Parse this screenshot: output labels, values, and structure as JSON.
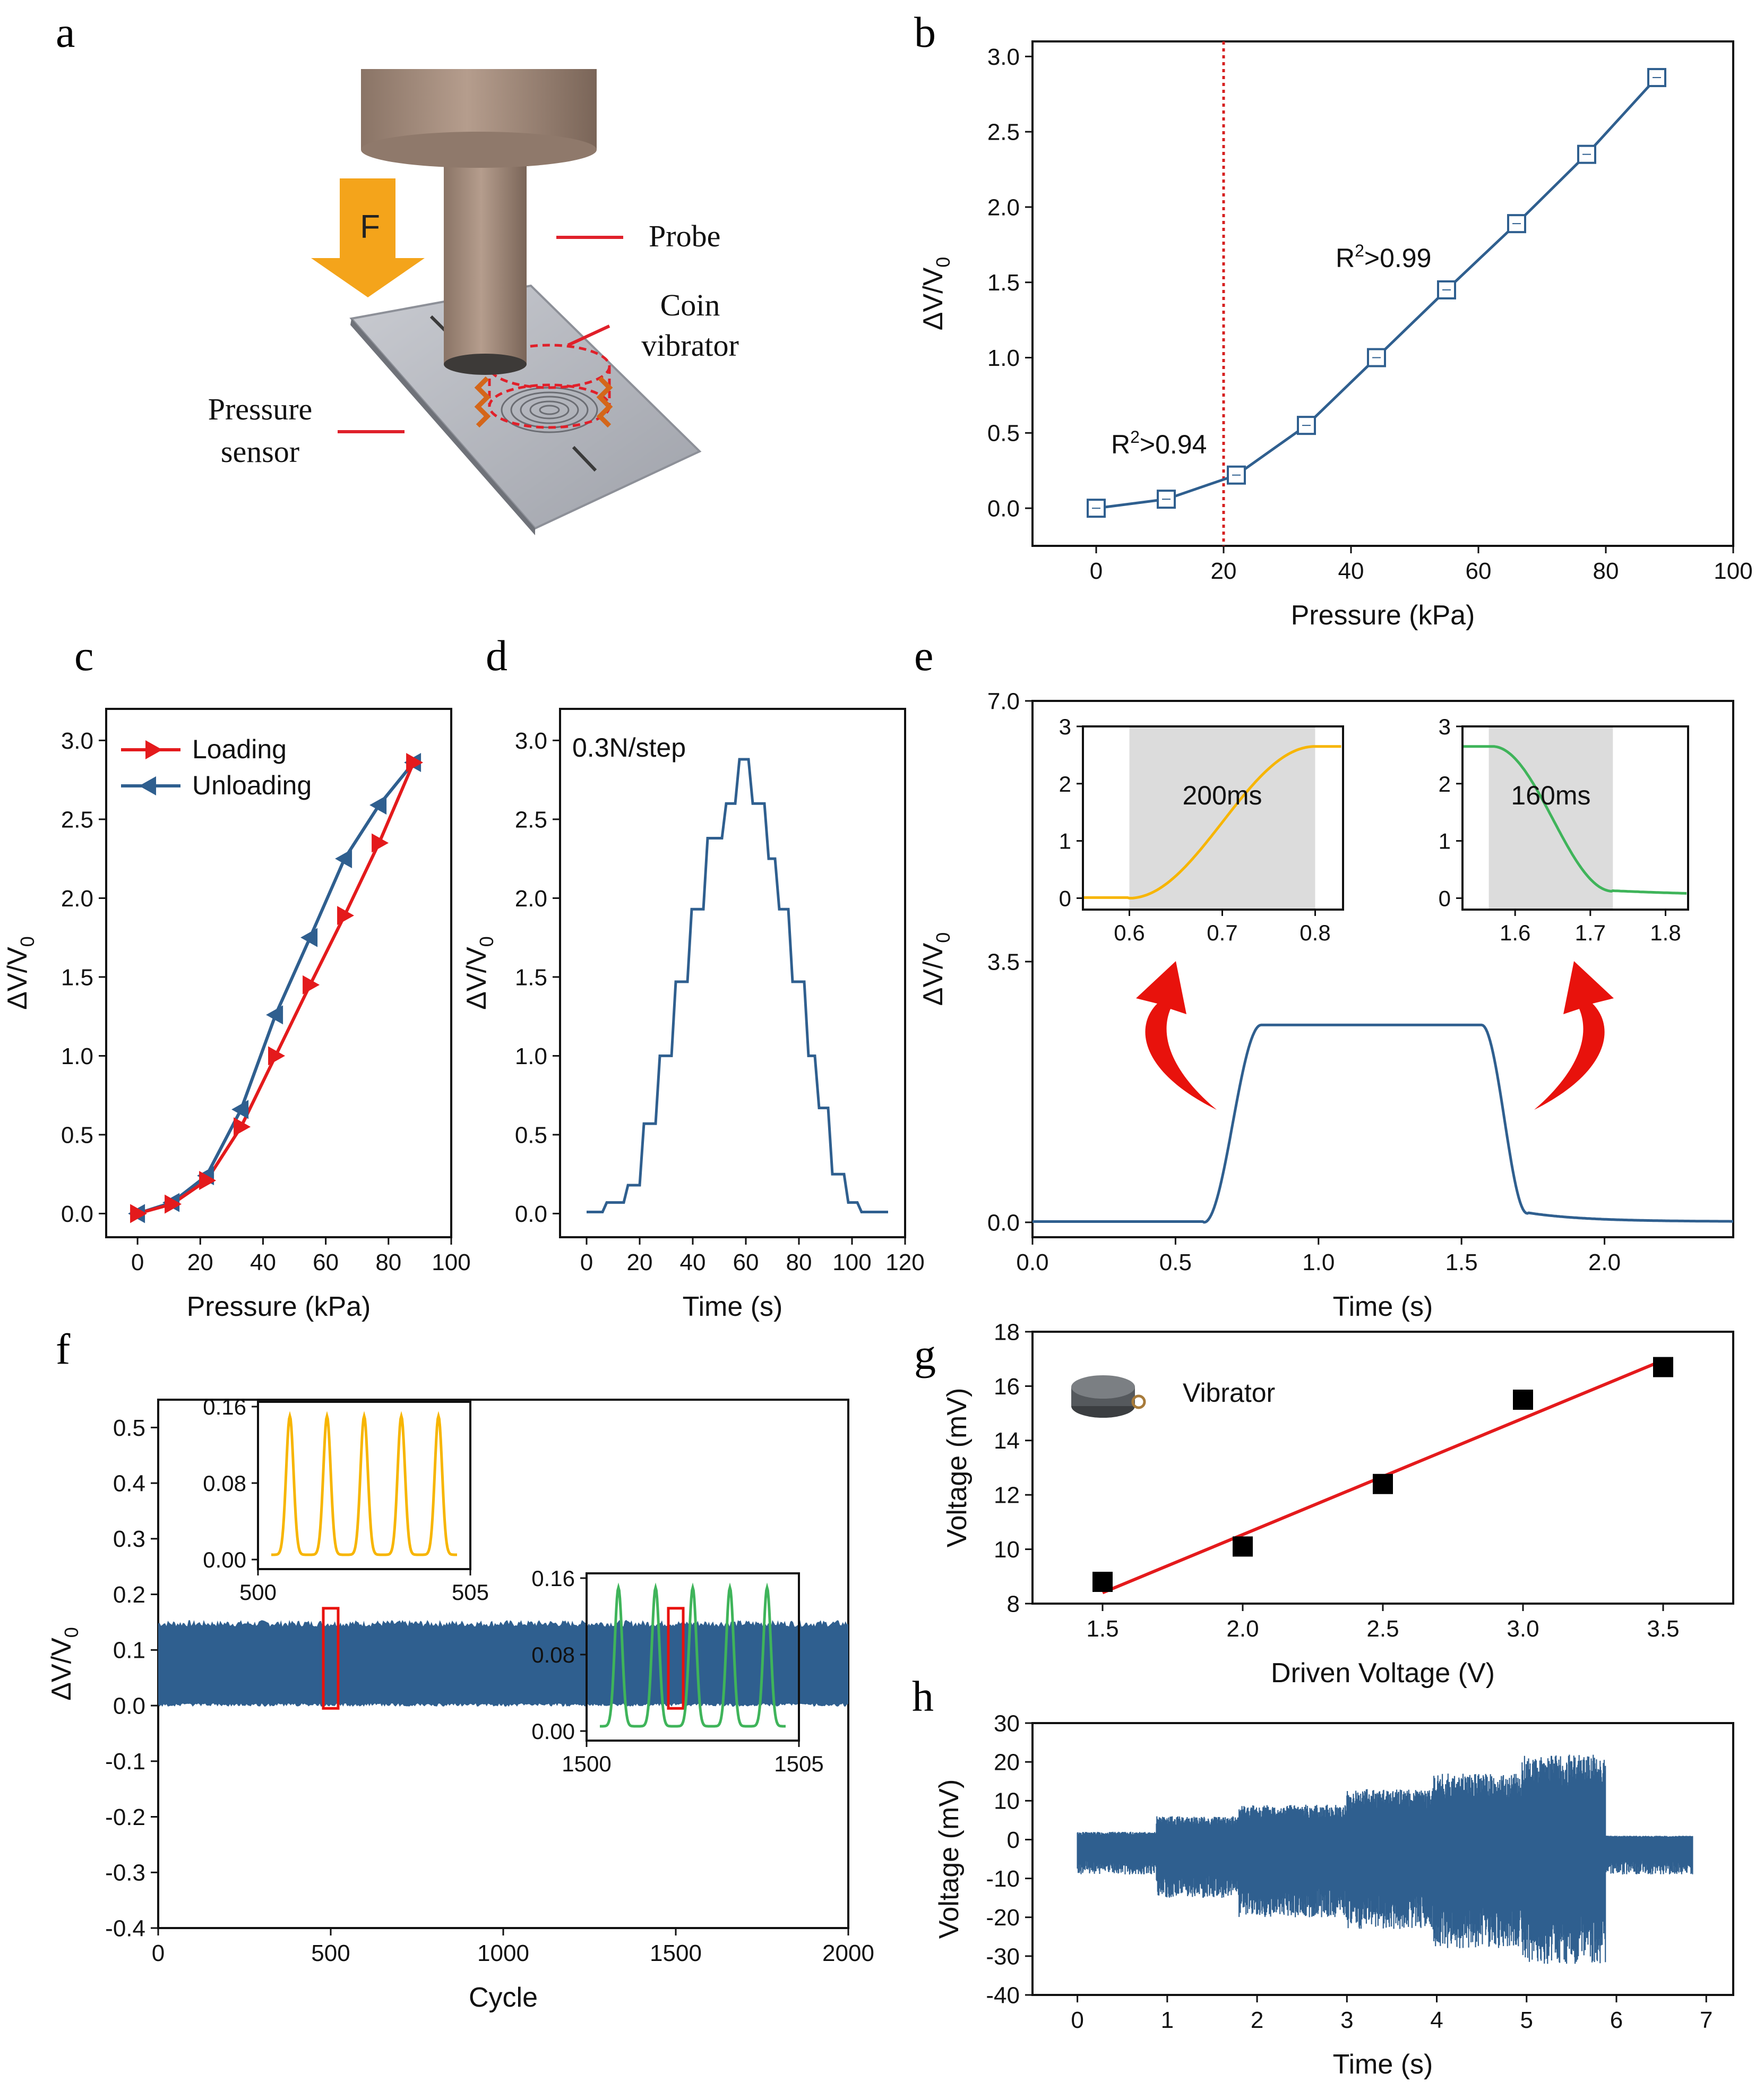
{
  "panel_letters": {
    "a": "a",
    "b": "b",
    "c": "c",
    "d": "d",
    "e": "e",
    "f": "f",
    "g": "g",
    "h": "h"
  },
  "panel_a": {
    "force_label": "F",
    "probe_label": "Probe",
    "coin_label_line1": "Coin",
    "coin_label_line2": "vibrator",
    "sensor_label_line1": "Pressure",
    "sensor_label_line2": "sensor"
  },
  "colors": {
    "series_blue": "#2f5f8f",
    "loading_red": "#e41a1c",
    "inset_yellow": "#f7b500",
    "inset_green": "#3fb45a",
    "threshold": "#d62020",
    "fit_red": "#e41a1c"
  },
  "chart_data": [
    {
      "id": "b",
      "type": "line",
      "xlabel": "Pressure (kPa)",
      "ylabel": "ΔV/V",
      "ylabel_sub": "0",
      "xlim": [
        -10,
        100
      ],
      "ylim": [
        -0.25,
        3.1
      ],
      "xticks": [
        0,
        20,
        40,
        60,
        80,
        100
      ],
      "yticks": [
        0.0,
        0.5,
        1.0,
        1.5,
        2.0,
        2.5,
        3.0
      ],
      "xtick_labels": [
        "0",
        "20",
        "40",
        "60",
        "80",
        "100"
      ],
      "ytick_labels": [
        "0.0",
        "0.5",
        "1.0",
        "1.5",
        "2.0",
        "2.5",
        "3.0"
      ],
      "series": [
        {
          "name": "ΔV/V0",
          "x": [
            0,
            11,
            22,
            33,
            44,
            55,
            66,
            77,
            88
          ],
          "y": [
            0.0,
            0.06,
            0.22,
            0.55,
            1.0,
            1.45,
            1.89,
            2.35,
            2.86
          ]
        }
      ],
      "threshold_x": 20,
      "annotations": {
        "low_r2_base": "R",
        "low_r2_sup": "2",
        "low_r2_value": ">0.94",
        "high_r2_base": "R",
        "high_r2_sup": "2",
        "high_r2_value": ">0.99"
      }
    },
    {
      "id": "c",
      "type": "line",
      "xlabel": "Pressure (kPa)",
      "ylabel": "ΔV/V",
      "ylabel_sub": "0",
      "xlim": [
        -10,
        100
      ],
      "ylim": [
        -0.15,
        3.2
      ],
      "xticks": [
        0,
        20,
        40,
        60,
        80,
        100
      ],
      "yticks": [
        0.0,
        0.5,
        1.0,
        1.5,
        2.0,
        2.5,
        3.0
      ],
      "xtick_labels": [
        "0",
        "20",
        "40",
        "60",
        "80",
        "100"
      ],
      "ytick_labels": [
        "0.0",
        "0.5",
        "1.0",
        "1.5",
        "2.0",
        "2.5",
        "3.0"
      ],
      "series": [
        {
          "name": "Loading",
          "x": [
            0,
            11,
            22,
            33,
            44,
            55,
            66,
            77,
            88
          ],
          "y": [
            0.0,
            0.06,
            0.21,
            0.55,
            1.0,
            1.45,
            1.89,
            2.35,
            2.86
          ]
        },
        {
          "name": "Unloading",
          "x": [
            0,
            11,
            22,
            33,
            44,
            55,
            66,
            77,
            88
          ],
          "y": [
            0.0,
            0.07,
            0.24,
            0.66,
            1.26,
            1.75,
            2.25,
            2.59,
            2.86
          ]
        }
      ]
    },
    {
      "id": "d",
      "type": "line",
      "xlabel": "Time (s)",
      "ylabel": "ΔV/V",
      "ylabel_sub": "0",
      "xlim": [
        -10,
        120
      ],
      "ylim": [
        -0.15,
        3.2
      ],
      "xticks": [
        0,
        20,
        40,
        60,
        80,
        100,
        120
      ],
      "yticks": [
        0.0,
        0.5,
        1.0,
        1.5,
        2.0,
        2.5,
        3.0
      ],
      "xtick_labels": [
        "0",
        "20",
        "40",
        "60",
        "80",
        "100",
        "120"
      ],
      "ytick_labels": [
        "0.0",
        "0.5",
        "1.0",
        "1.5",
        "2.0",
        "2.5",
        "3.0"
      ],
      "annotation": "0.3N/step",
      "steps": [
        [
          0,
          0.01
        ],
        [
          6,
          0.07
        ],
        [
          14,
          0.18
        ],
        [
          20,
          0.57
        ],
        [
          26,
          1.0
        ],
        [
          32,
          1.47
        ],
        [
          38,
          1.93
        ],
        [
          44,
          2.38
        ],
        [
          51,
          2.6
        ],
        [
          56,
          2.88
        ],
        [
          61,
          2.6
        ],
        [
          67,
          2.25
        ],
        [
          71,
          1.93
        ],
        [
          76,
          1.47
        ],
        [
          82,
          1.0
        ],
        [
          86,
          0.67
        ],
        [
          91,
          0.25
        ],
        [
          97,
          0.07
        ],
        [
          102,
          0.01
        ],
        [
          112,
          0.01
        ]
      ]
    },
    {
      "id": "e",
      "type": "line",
      "xlabel": "Time (s)",
      "ylabel": "ΔV/V",
      "ylabel_sub": "0",
      "xlim": [
        0,
        2.45
      ],
      "ylim": [
        -0.2,
        7.0
      ],
      "xticks": [
        0.0,
        0.5,
        1.0,
        1.5,
        2.0
      ],
      "yticks": [
        0.0,
        3.5,
        7.0
      ],
      "xtick_labels": [
        "0.0",
        "0.5",
        "1.0",
        "1.5",
        "2.0"
      ],
      "ytick_labels": [
        "0.0",
        "3.5",
        "7.0"
      ],
      "plateau": 2.65,
      "rise": [
        0.6,
        0.8
      ],
      "fall": [
        1.57,
        1.73
      ],
      "insets": [
        {
          "xlim": [
            0.55,
            0.83
          ],
          "ylim": [
            -0.2,
            3.0
          ],
          "xtick_labels": [
            "0.6",
            "0.7",
            "0.8"
          ],
          "xticks": [
            0.6,
            0.7,
            0.8
          ],
          "ytick_labels": [
            "0",
            "1",
            "2",
            "3"
          ],
          "yticks": [
            0,
            1,
            2,
            3
          ],
          "shade": [
            0.6,
            0.8
          ],
          "label": "200ms",
          "color": "inset_yellow"
        },
        {
          "xlim": [
            1.53,
            1.83
          ],
          "ylim": [
            -0.2,
            3.0
          ],
          "xtick_labels": [
            "1.6",
            "1.7",
            "1.8"
          ],
          "xticks": [
            1.6,
            1.7,
            1.8
          ],
          "ytick_labels": [
            "0",
            "1",
            "2",
            "3"
          ],
          "yticks": [
            0,
            1,
            2,
            3
          ],
          "shade": [
            1.565,
            1.73
          ],
          "label": "160ms",
          "color": "inset_green"
        }
      ]
    },
    {
      "id": "f",
      "type": "area",
      "xlabel": "Cycle",
      "ylabel": "ΔV/V",
      "ylabel_sub": "0",
      "xlim": [
        0,
        2000
      ],
      "ylim": [
        -0.4,
        0.55
      ],
      "xticks": [
        0,
        500,
        1000,
        1500,
        2000
      ],
      "yticks": [
        -0.4,
        -0.3,
        -0.2,
        -0.1,
        0.0,
        0.1,
        0.2,
        0.3,
        0.4,
        0.5
      ],
      "xtick_labels": [
        "0",
        "500",
        "1000",
        "1500",
        "2000"
      ],
      "ytick_labels": [
        "-0.4",
        "-0.3",
        "-0.2",
        "-0.1",
        "0.0",
        "0.1",
        "0.2",
        "0.3",
        "0.4",
        "0.5"
      ],
      "band": [
        0.0,
        0.15
      ],
      "highlight_cycles": [
        500,
        1500
      ],
      "insets": [
        {
          "xlim": [
            500,
            505
          ],
          "xtick_labels": [
            "500",
            "505"
          ],
          "ylim": [
            -0.01,
            0.165
          ],
          "ytick_labels": [
            "0.00",
            "0.08",
            "0.16"
          ],
          "yticks": [
            0.0,
            0.08,
            0.16
          ],
          "peaks": 5,
          "color": "inset_yellow"
        },
        {
          "xlim": [
            1500,
            1505
          ],
          "xtick_labels": [
            "1500",
            "1505"
          ],
          "ylim": [
            -0.01,
            0.165
          ],
          "ytick_labels": [
            "0.00",
            "0.08",
            "0.16"
          ],
          "yticks": [
            0.0,
            0.08,
            0.16
          ],
          "peaks": 5,
          "color": "inset_green"
        }
      ]
    },
    {
      "id": "g",
      "type": "scatter",
      "xlabel": "Driven Voltage (V)",
      "ylabel": "Voltage (mV)",
      "xlim": [
        1.25,
        3.75
      ],
      "ylim": [
        8,
        18
      ],
      "xticks": [
        1.5,
        2.0,
        2.5,
        3.0,
        3.5
      ],
      "yticks": [
        8,
        10,
        12,
        14,
        16,
        18
      ],
      "xtick_labels": [
        "1.5",
        "2.0",
        "2.5",
        "3.0",
        "3.5"
      ],
      "ytick_labels": [
        "8",
        "10",
        "12",
        "14",
        "16",
        "18"
      ],
      "x": [
        1.5,
        2.0,
        2.5,
        3.0,
        3.5
      ],
      "y": [
        8.8,
        10.1,
        12.4,
        15.5,
        16.7
      ],
      "fit": {
        "x": [
          1.5,
          3.5
        ],
        "y": [
          8.4,
          16.95
        ]
      },
      "legend_label": "Vibrator"
    },
    {
      "id": "h",
      "type": "line",
      "xlabel": "Time (s)",
      "ylabel": "Voltage (mV)",
      "xlim": [
        -0.5,
        7.3
      ],
      "ylim": [
        -40,
        30
      ],
      "xticks": [
        0,
        1,
        2,
        3,
        4,
        5,
        6,
        7
      ],
      "yticks": [
        -40,
        -30,
        -20,
        -10,
        0,
        10,
        20,
        30
      ],
      "xtick_labels": [
        "0",
        "1",
        "2",
        "3",
        "4",
        "5",
        "6",
        "7"
      ],
      "ytick_labels": [
        "-40",
        "-30",
        "-20",
        "-10",
        "0",
        "10",
        "20",
        "30"
      ],
      "segments": [
        {
          "t": [
            0.0,
            0.88
          ],
          "hi": 2,
          "lo": -9
        },
        {
          "t": [
            0.88,
            1.8
          ],
          "hi": 6,
          "lo": -15
        },
        {
          "t": [
            1.8,
            3.0
          ],
          "hi": 9,
          "lo": -20
        },
        {
          "t": [
            3.0,
            3.95
          ],
          "hi": 13,
          "lo": -23
        },
        {
          "t": [
            3.95,
            4.95
          ],
          "hi": 17,
          "lo": -28
        },
        {
          "t": [
            4.95,
            5.88
          ],
          "hi": 22,
          "lo": -32
        },
        {
          "t": [
            5.88,
            6.85
          ],
          "hi": 1,
          "lo": -9
        }
      ]
    }
  ]
}
